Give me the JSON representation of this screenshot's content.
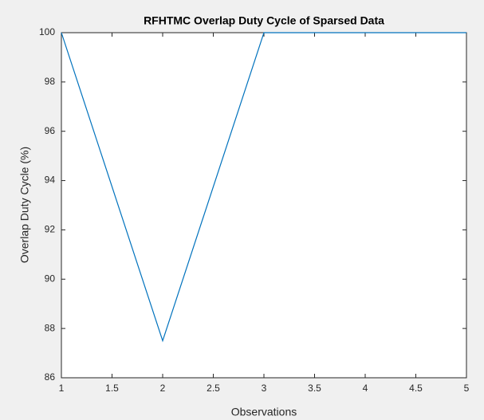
{
  "chart_data": {
    "type": "line",
    "title": "RFHTMC Overlap Duty Cycle of Sparsed Data",
    "xlabel": "Observations",
    "ylabel": "Overlap Duty Cycle (%)",
    "x": [
      1,
      2,
      3,
      4,
      5
    ],
    "series": [
      {
        "name": "Overlap Duty Cycle",
        "color": "#0072bd",
        "values": [
          100,
          87.5,
          100,
          100,
          100
        ]
      }
    ],
    "xlim": [
      1,
      5
    ],
    "xticks": [
      1,
      1.5,
      2,
      2.5,
      3,
      3.5,
      4,
      4.5,
      5
    ],
    "ylim": [
      86,
      100
    ],
    "yticks": [
      86,
      88,
      90,
      92,
      94,
      96,
      98,
      100
    ],
    "grid": false
  }
}
